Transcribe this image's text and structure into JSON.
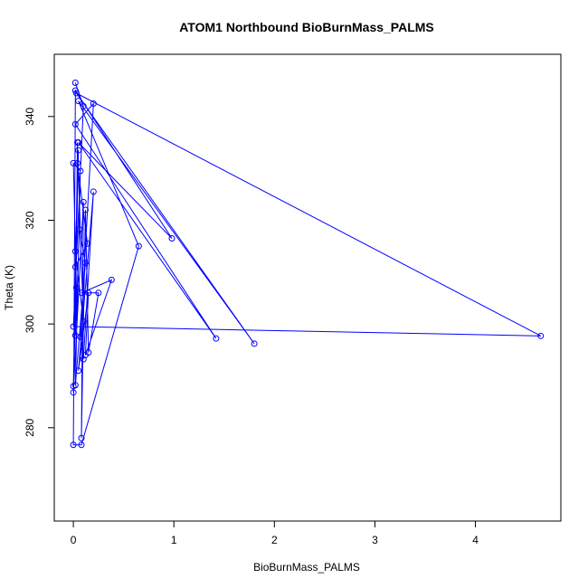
{
  "chart_data": {
    "type": "line",
    "title": "ATOM1 Northbound BioBurnMass_PALMS",
    "xlabel": "BioBurnMass_PALMS",
    "ylabel": "Theta (K)",
    "xlim": [
      -0.19,
      4.85
    ],
    "ylim": [
      262,
      352
    ],
    "xticks": [
      0,
      1,
      2,
      3,
      4
    ],
    "yticks": [
      280,
      300,
      320,
      340
    ],
    "grid": false,
    "legend": "none",
    "series": [
      {
        "color": "#0000ff",
        "markers": "open-circle",
        "points": [
          [
            0.02,
            346.5
          ],
          [
            0.1,
            342.0
          ],
          [
            0.0,
            299.5
          ],
          [
            4.65,
            297.7
          ],
          [
            0.03,
            344.5
          ],
          [
            1.8,
            296.2
          ],
          [
            0.05,
            343.0
          ],
          [
            0.65,
            315.0
          ],
          [
            0.08,
            276.7
          ],
          [
            0.0,
            276.7
          ],
          [
            0.02,
            345.0
          ],
          [
            0.98,
            316.5
          ],
          [
            0.05,
            335.0
          ],
          [
            1.42,
            297.2
          ],
          [
            0.02,
            338.5
          ],
          [
            0.2,
            342.5
          ],
          [
            0.07,
            297.5
          ],
          [
            0.1,
            293.2
          ],
          [
            0.2,
            325.5
          ],
          [
            0.05,
            291.0
          ],
          [
            0.15,
            306.0
          ],
          [
            0.12,
            294.0
          ],
          [
            0.38,
            308.5
          ],
          [
            0.08,
            306.0
          ],
          [
            0.25,
            306.0
          ],
          [
            0.15,
            294.5
          ],
          [
            0.12,
            322.0
          ],
          [
            0.08,
            278.0
          ],
          [
            0.1,
            323.5
          ],
          [
            0.0,
            286.8
          ],
          [
            0.05,
            333.5
          ],
          [
            0.02,
            311.0
          ],
          [
            0.14,
            315.5
          ],
          [
            0.04,
            331.0
          ],
          [
            0.0,
            288.0
          ],
          [
            0.03,
            307.0
          ],
          [
            0.0,
            331.0
          ],
          [
            0.07,
            329.5
          ],
          [
            0.02,
            288.2
          ],
          [
            0.12,
            311.8
          ],
          [
            0.06,
            318.2
          ],
          [
            0.02,
            297.8
          ],
          [
            0.04,
            335.0
          ],
          [
            0.1,
            300.5
          ],
          [
            0.02,
            314.0
          ]
        ]
      }
    ]
  }
}
